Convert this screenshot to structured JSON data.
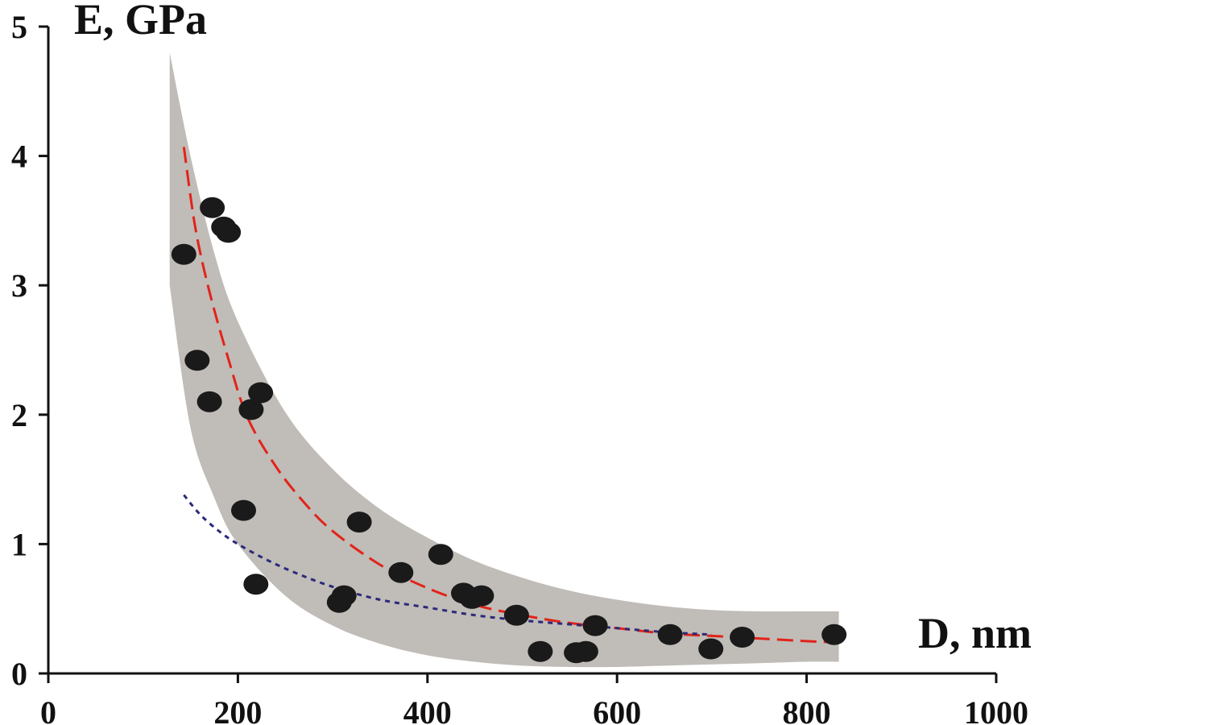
{
  "chart_data": {
    "type": "scatter",
    "title": "",
    "xlabel": "D, nm",
    "ylabel": "E, GPa",
    "xlim": [
      0,
      1000
    ],
    "ylim": [
      0,
      5
    ],
    "x_ticks": [
      0,
      200,
      400,
      600,
      800,
      1000
    ],
    "y_ticks": [
      0,
      1,
      2,
      3,
      4,
      5
    ],
    "grid": false,
    "colors": {
      "points": "#1a1a1a",
      "band": "#c0bcb7",
      "fit_dashed": "#e2231a",
      "fit_dotted": "#2a2a7a",
      "axes": "#111111"
    },
    "series": [
      {
        "kind": "points",
        "x": [
          143,
          173,
          185,
          190,
          157,
          170,
          214,
          224,
          206,
          219,
          312,
          307,
          328,
          372,
          414,
          438,
          447,
          457,
          494,
          519,
          557,
          567,
          577,
          656,
          699,
          732,
          829
        ],
        "y": [
          3.24,
          3.6,
          3.45,
          3.41,
          2.42,
          2.1,
          2.04,
          2.17,
          1.26,
          0.69,
          0.6,
          0.55,
          1.17,
          0.78,
          0.92,
          0.62,
          0.58,
          0.6,
          0.45,
          0.17,
          0.16,
          0.17,
          0.37,
          0.3,
          0.19,
          0.28,
          0.3
        ]
      },
      {
        "kind": "band",
        "x": [
          128,
          150,
          175,
          200,
          250,
          300,
          350,
          400,
          450,
          500,
          550,
          600,
          650,
          700,
          750,
          800,
          834
        ],
        "upper": [
          4.8,
          4.0,
          3.25,
          2.72,
          2.02,
          1.58,
          1.27,
          1.05,
          0.87,
          0.74,
          0.64,
          0.57,
          0.52,
          0.49,
          0.48,
          0.48,
          0.48
        ],
        "lower": [
          3.0,
          1.9,
          1.36,
          1.0,
          0.6,
          0.37,
          0.23,
          0.14,
          0.09,
          0.06,
          0.05,
          0.05,
          0.06,
          0.07,
          0.08,
          0.09,
          0.09
        ]
      },
      {
        "kind": "fit-dashed",
        "x": [
          143,
          155,
          170,
          190,
          210,
          240,
          270,
          300,
          350,
          400,
          450,
          500,
          550,
          600,
          650,
          700,
          750,
          800,
          833
        ],
        "y": [
          4.07,
          3.45,
          2.95,
          2.43,
          1.98,
          1.6,
          1.32,
          1.1,
          0.84,
          0.66,
          0.53,
          0.45,
          0.39,
          0.35,
          0.31,
          0.29,
          0.27,
          0.25,
          0.24
        ]
      },
      {
        "kind": "fit-dotted",
        "x": [
          143,
          160,
          180,
          200,
          230,
          260,
          300,
          350,
          400,
          450,
          500,
          550,
          600,
          650,
          700
        ],
        "y": [
          1.38,
          1.23,
          1.1,
          1.0,
          0.88,
          0.78,
          0.67,
          0.57,
          0.51,
          0.45,
          0.41,
          0.38,
          0.35,
          0.32,
          0.3
        ]
      }
    ]
  }
}
